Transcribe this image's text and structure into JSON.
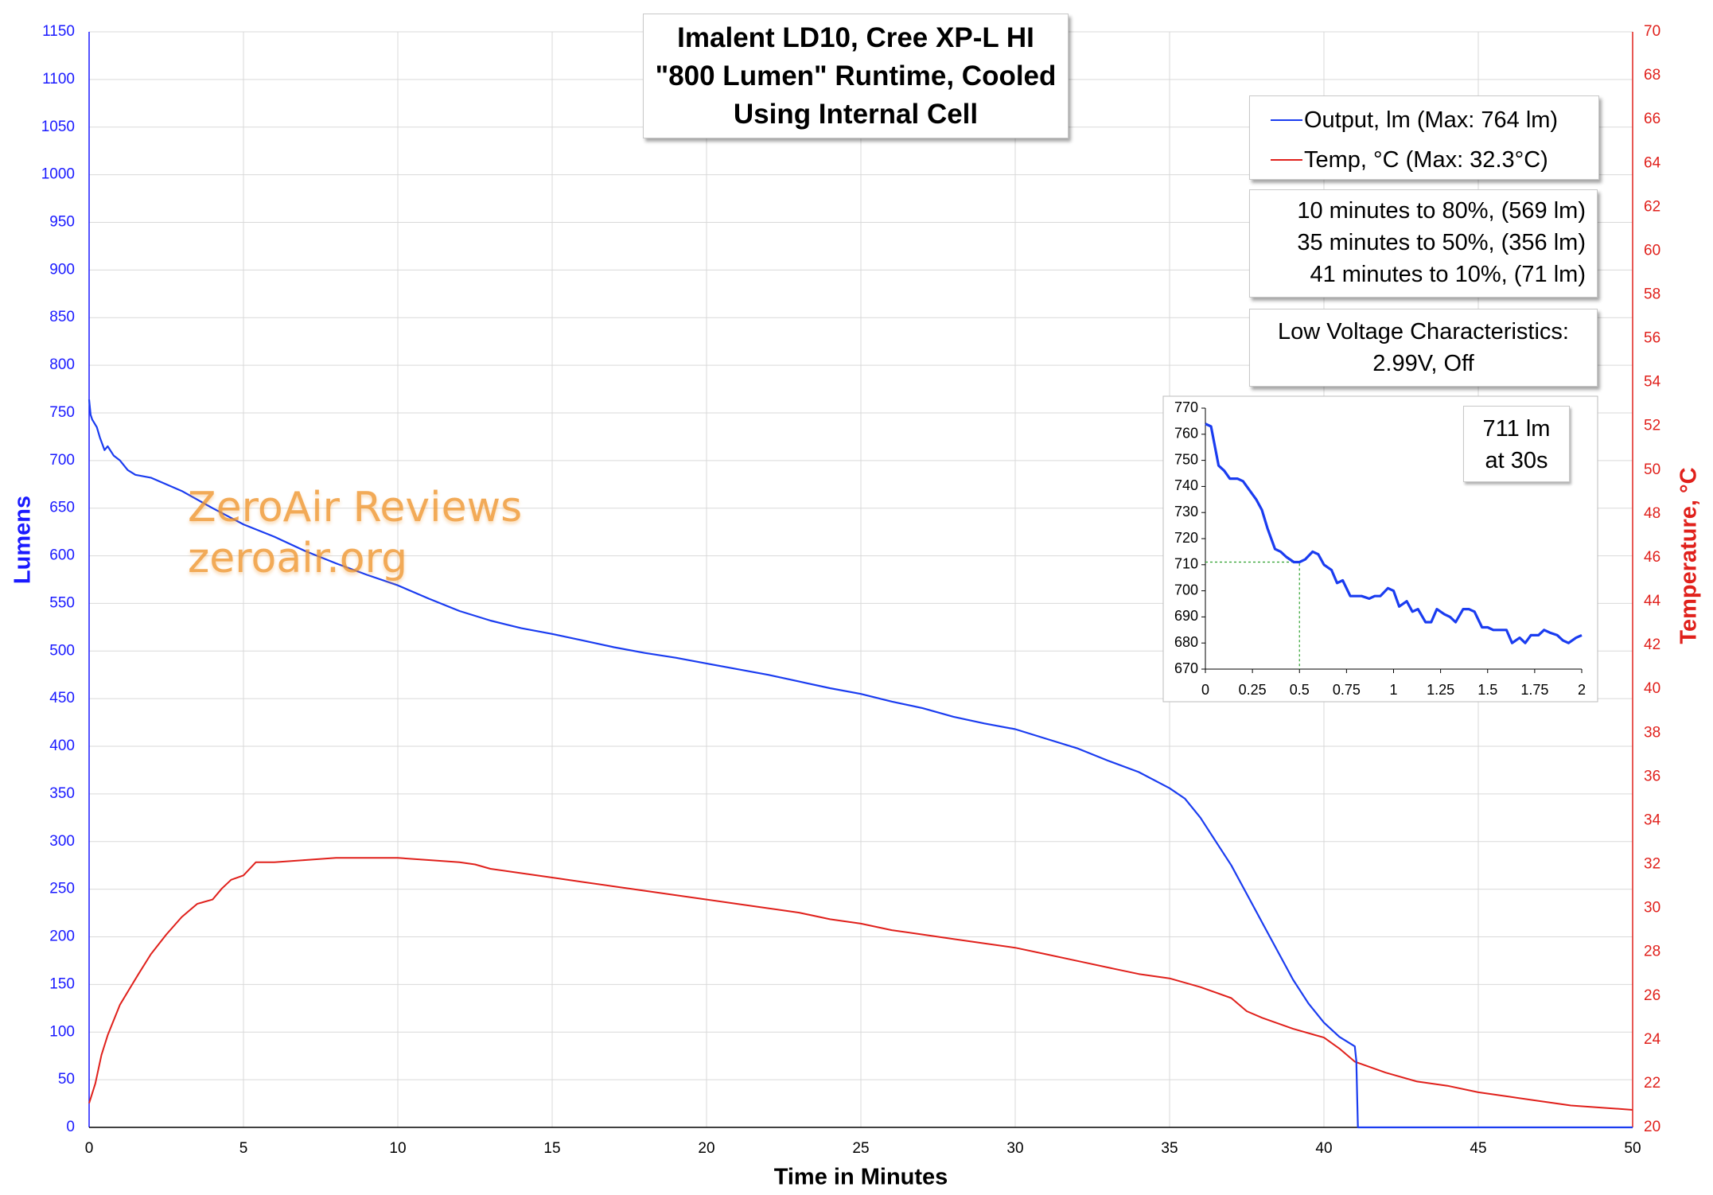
{
  "title": {
    "line1": "Imalent LD10, Cree XP-L HI",
    "line2": "\"800 Lumen\" Runtime, Cooled",
    "line3": "Using Internal Cell"
  },
  "legend": {
    "output": "Output, lm (Max: 764 lm)",
    "temp": "Temp, °C (Max: 32.3°C)"
  },
  "stats": {
    "line1": "10 minutes to 80%, (569 lm)",
    "line2": "35 minutes to 50%, (356 lm)",
    "line3": "41 minutes to 10%, (71 lm)"
  },
  "low_voltage": {
    "line1": "Low Voltage Characteristics:",
    "line2": "2.99V, Off"
  },
  "inset_note": {
    "line1": "711 lm",
    "line2": "at 30s"
  },
  "watermark": {
    "line1": "ZeroAir Reviews",
    "line2": "zeroair.org"
  },
  "colors": {
    "output": "#1a3cf0",
    "temp": "#e0201b",
    "left_axis": "#1a1aff",
    "right_axis": "#e0201b",
    "grid": "#d9d9d9",
    "inset_guide": "#2ea12e"
  },
  "chart_data": [
    {
      "type": "line",
      "xlabel": "Time in Minutes",
      "ylabel": "Lumens",
      "y2label": "Temperature, °C",
      "xlim": [
        0,
        50
      ],
      "xticks": [
        0,
        5,
        10,
        15,
        20,
        25,
        30,
        35,
        40,
        45,
        50
      ],
      "ylim": [
        0,
        1150
      ],
      "yticks": [
        0,
        50,
        100,
        150,
        200,
        250,
        300,
        350,
        400,
        450,
        500,
        550,
        600,
        650,
        700,
        750,
        800,
        850,
        900,
        950,
        1000,
        1050,
        1100,
        1150
      ],
      "y2lim": [
        20,
        70
      ],
      "y2ticks": [
        20,
        22,
        24,
        26,
        28,
        30,
        32,
        34,
        36,
        38,
        40,
        42,
        44,
        46,
        48,
        50,
        52,
        54,
        56,
        58,
        60,
        62,
        64,
        66,
        68,
        70
      ],
      "grid": true,
      "legend_position": "top-right",
      "series": [
        {
          "name": "Output, lm (Max: 764 lm)",
          "axis": "left",
          "x": [
            0,
            0.05,
            0.1,
            0.25,
            0.35,
            0.5,
            0.6,
            0.8,
            1,
            1.25,
            1.5,
            2,
            3,
            4,
            5,
            6,
            7,
            8,
            9,
            10,
            11,
            12,
            13,
            14,
            15,
            16,
            17,
            18,
            19,
            20,
            21,
            22,
            23,
            24,
            25,
            26,
            27,
            28,
            29,
            30,
            31,
            32,
            33,
            34,
            35,
            35.5,
            36,
            36.5,
            37,
            37.5,
            38,
            38.5,
            39,
            39.5,
            40,
            40.5,
            41,
            41.05,
            41.1,
            50
          ],
          "y": [
            764,
            748,
            743,
            735,
            724,
            711,
            715,
            705,
            700,
            690,
            685,
            682,
            668,
            650,
            633,
            620,
            605,
            592,
            580,
            569,
            555,
            542,
            532,
            524,
            518,
            511,
            504,
            498,
            493,
            487,
            481,
            475,
            468,
            461,
            455,
            447,
            440,
            431,
            424,
            418,
            408,
            398,
            385,
            373,
            356,
            345,
            325,
            300,
            275,
            245,
            215,
            185,
            155,
            130,
            110,
            95,
            85,
            70,
            0,
            0
          ]
        },
        {
          "name": "Temp, °C (Max: 32.3°C)",
          "axis": "right",
          "x": [
            0,
            0.2,
            0.4,
            0.6,
            0.8,
            1,
            1.3,
            1.6,
            2,
            2.5,
            3,
            3.5,
            4,
            4.3,
            4.6,
            5,
            5.4,
            6,
            7,
            8,
            9,
            10,
            11,
            12,
            12.5,
            13,
            14,
            15,
            16,
            17,
            18,
            19,
            20,
            21,
            22,
            23,
            24,
            25,
            26,
            27,
            28,
            29,
            30,
            31,
            32,
            33,
            34,
            35,
            36,
            37,
            37.5,
            38,
            39,
            40,
            40.5,
            41,
            42,
            43,
            44,
            45,
            46,
            47,
            48,
            49,
            50
          ],
          "y": [
            21.1,
            22.0,
            23.3,
            24.2,
            24.9,
            25.6,
            26.3,
            27.0,
            27.9,
            28.8,
            29.6,
            30.2,
            30.4,
            30.9,
            31.3,
            31.5,
            32.1,
            32.1,
            32.2,
            32.3,
            32.3,
            32.3,
            32.2,
            32.1,
            32.0,
            31.8,
            31.6,
            31.4,
            31.2,
            31.0,
            30.8,
            30.6,
            30.4,
            30.2,
            30.0,
            29.8,
            29.5,
            29.3,
            29.0,
            28.8,
            28.6,
            28.4,
            28.2,
            27.9,
            27.6,
            27.3,
            27.0,
            26.8,
            26.4,
            25.9,
            25.3,
            25.0,
            24.5,
            24.1,
            23.6,
            23.0,
            22.5,
            22.1,
            21.9,
            21.6,
            21.4,
            21.2,
            21.0,
            20.9,
            20.8
          ]
        }
      ]
    },
    {
      "type": "line",
      "title": "",
      "xlim": [
        0,
        2
      ],
      "xticks": [
        0,
        0.25,
        0.5,
        0.75,
        1,
        1.25,
        1.5,
        1.75,
        2
      ],
      "ylim": [
        670,
        770
      ],
      "yticks": [
        670,
        680,
        690,
        700,
        710,
        720,
        730,
        740,
        750,
        760,
        770
      ],
      "grid": false,
      "reference_point": {
        "x": 0.5,
        "y": 711
      },
      "series": [
        {
          "name": "Output, lm (Max: 764 lm)",
          "x": [
            0,
            0.03,
            0.07,
            0.1,
            0.13,
            0.17,
            0.2,
            0.23,
            0.27,
            0.3,
            0.33,
            0.37,
            0.4,
            0.43,
            0.47,
            0.5,
            0.53,
            0.57,
            0.6,
            0.63,
            0.67,
            0.7,
            0.73,
            0.77,
            0.8,
            0.83,
            0.87,
            0.9,
            0.93,
            0.97,
            1,
            1.03,
            1.07,
            1.1,
            1.13,
            1.17,
            1.2,
            1.23,
            1.27,
            1.3,
            1.33,
            1.37,
            1.4,
            1.43,
            1.47,
            1.5,
            1.53,
            1.57,
            1.6,
            1.63,
            1.67,
            1.7,
            1.73,
            1.77,
            1.8,
            1.83,
            1.87,
            1.9,
            1.93,
            1.97,
            2
          ],
          "y": [
            764,
            763,
            748,
            746,
            743,
            743,
            742,
            739,
            735,
            731,
            724,
            716,
            715,
            713,
            711,
            711,
            712,
            715,
            714,
            710,
            708,
            703,
            704,
            698,
            698,
            698,
            697,
            698,
            698,
            701,
            700,
            694,
            696,
            692,
            693,
            688,
            688,
            693,
            691,
            690,
            688,
            693,
            693,
            692,
            686,
            686,
            685,
            685,
            685,
            680,
            682,
            680,
            683,
            683,
            685,
            684,
            683,
            681,
            680,
            682,
            683
          ]
        }
      ]
    }
  ]
}
